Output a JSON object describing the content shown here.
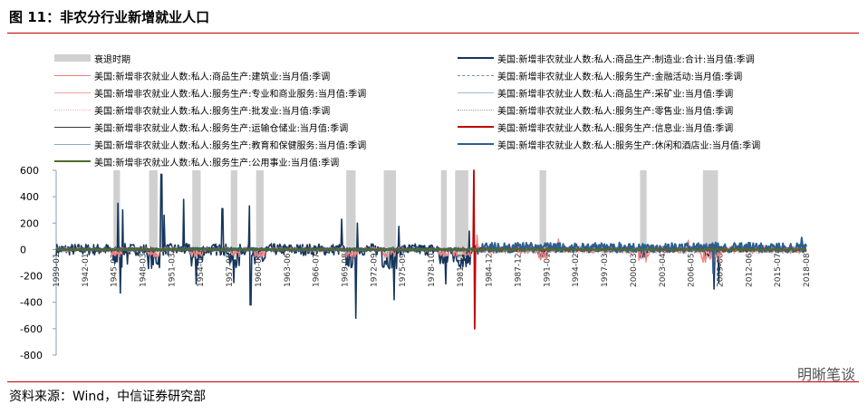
{
  "figure": {
    "title": "图 11：非农分行业新增就业人口",
    "source": "资料来源：Wind，中信证券研究部",
    "watermark": "明晰笔谈"
  },
  "chart_data": {
    "type": "line",
    "title": "",
    "xlabel": "",
    "ylabel": "",
    "ylim": [
      -800,
      600
    ],
    "yticks": [
      600,
      400,
      200,
      0,
      -200,
      -400,
      -600,
      -800
    ],
    "xlim": [
      1939.0,
      2018.92
    ],
    "xtick_labels": [
      "1939-01",
      "1942-01",
      "1945-02",
      "1948-03",
      "1951-03",
      "1954-04",
      "1957-05",
      "1960-06",
      "1963-06",
      "1966-07",
      "1969-08",
      "1972-09",
      "1975-09",
      "1978-10",
      "1981-11",
      "1984-12",
      "1987-12",
      "1991-01",
      "1994-02",
      "1997-03",
      "2000-03",
      "2003-04",
      "2006-05",
      "2009-06",
      "2012-06",
      "2015-07",
      "2018-08"
    ],
    "grid": false,
    "legend_position": "top",
    "recessions": [
      {
        "start": 1945.1,
        "end": 1945.8
      },
      {
        "start": 1948.9,
        "end": 1949.8
      },
      {
        "start": 1953.5,
        "end": 1954.4
      },
      {
        "start": 1957.6,
        "end": 1958.3
      },
      {
        "start": 1960.3,
        "end": 1961.1
      },
      {
        "start": 1969.9,
        "end": 1970.9
      },
      {
        "start": 1973.9,
        "end": 1975.2
      },
      {
        "start": 1980.0,
        "end": 1980.6
      },
      {
        "start": 1981.5,
        "end": 1982.9
      },
      {
        "start": 1990.5,
        "end": 1991.2
      },
      {
        "start": 2001.2,
        "end": 2001.9
      },
      {
        "start": 2007.9,
        "end": 2009.5
      }
    ],
    "spikes": [
      {
        "series": "美国:新增非农就业人数:私人:商品生产:制造业:合计:当月值:季调",
        "points": [
          [
            1945.6,
            350
          ],
          [
            1945.8,
            -330
          ],
          [
            1946.1,
            300
          ],
          [
            1946.6,
            -110
          ],
          [
            1950.2,
            570
          ],
          [
            1950.5,
            260
          ],
          [
            1952.6,
            380
          ],
          [
            1953.9,
            -260
          ],
          [
            1956.7,
            310
          ],
          [
            1957.9,
            -250
          ],
          [
            1959.6,
            330
          ],
          [
            1959.7,
            -420
          ],
          [
            1969.4,
            230
          ],
          [
            1970.9,
            -520
          ],
          [
            1971.1,
            200
          ],
          [
            1975.0,
            -380
          ],
          [
            1975.5,
            175
          ],
          [
            1980.5,
            -260
          ],
          [
            1983.0,
            140
          ],
          [
            2009.1,
            -300
          ],
          [
            2009.6,
            -250
          ]
        ]
      },
      {
        "series": "美国:新增非农就业人数:私人:服务生产:信息业:当月值:季调",
        "points": [
          [
            1983.5,
            670
          ],
          [
            1983.6,
            -600
          ]
        ]
      },
      {
        "series": "美国:新增非农就业人数:私人:服务生产:休闲和酒店业:当月值:季调",
        "points": [
          [
            2009.0,
            -180
          ],
          [
            2018.4,
            90
          ]
        ]
      },
      {
        "series": "美国:新增非农就业人数:私人:商品生产:建筑业:当月值:季调",
        "points": [
          [
            1983.8,
            110
          ],
          [
            2006.3,
            70
          ],
          [
            1992.5,
            80
          ]
        ]
      }
    ],
    "series": [
      {
        "name": "衰退时期",
        "color": "#d0d0d0",
        "dash": "",
        "width": 8,
        "profile": "band"
      },
      {
        "name": "美国:新增非农就业人数:私人:商品生产:制造业:合计:当月值:季调",
        "color": "#16365c",
        "dash": "",
        "width": 1.6,
        "profile": "manufacturing"
      },
      {
        "name": "美国:新增非农就业人数:私人:商品生产:建筑业:当月值:季调",
        "color": "#f08080",
        "dash": "",
        "width": 1.4,
        "profile": "construction"
      },
      {
        "name": "美国:新增非农就业人数:私人:服务生产:金融活动:当月值:季调",
        "color": "#6f8fb6",
        "dash": "6,4",
        "width": 1.4,
        "profile": "finance"
      },
      {
        "name": "美国:新增非农就业人数:私人:服务生产:专业和商业服务:当月值:季调",
        "color": "#f2a0a0",
        "dash": "",
        "width": 0.8,
        "profile": "professional"
      },
      {
        "name": "美国:新增非农就业人数:私人:商品生产:采矿业:当月值:季调",
        "color": "#a7b9cf",
        "dash": "",
        "width": 0.8,
        "profile": "mining"
      },
      {
        "name": "美国:新增非农就业人数:私人:服务生产:批发业:当月值:季调",
        "color": "#f4b3b3",
        "dash": "1,2",
        "width": 0.8,
        "profile": "wholesale"
      },
      {
        "name": "美国:新增非农就业人数:私人:服务生产:零售业:当月值:季调",
        "color": "#9aa0a6",
        "dash": "1,2",
        "width": 0.8,
        "profile": "retail"
      },
      {
        "name": "美国:新增非农就业人数:私人:服务生产:运输仓储业:当月值:季调",
        "color": "#3a3a3a",
        "dash": "",
        "width": 0.8,
        "profile": "transport"
      },
      {
        "name": "美国:新增非农就业人数:私人:服务生产:信息业:当月值:季调",
        "color": "#c00000",
        "dash": "",
        "width": 1.8,
        "profile": "information"
      },
      {
        "name": "美国:新增非农就业人数:私人:服务生产:教育和保健服务:当月值:季调",
        "color": "#8ea9c8",
        "dash": "",
        "width": 0.8,
        "profile": "education"
      },
      {
        "name": "美国:新增非农就业人数:私人:服务生产:休闲和酒店业:当月值:季调",
        "color": "#2e5e8e",
        "dash": "",
        "width": 2.0,
        "profile": "leisure"
      },
      {
        "name": "美国:新增非农就业人数:私人:服务生产:公用事业:当月值:季调",
        "color": "#4e6b2a",
        "dash": "",
        "width": 2.0,
        "profile": "utilities"
      }
    ]
  }
}
